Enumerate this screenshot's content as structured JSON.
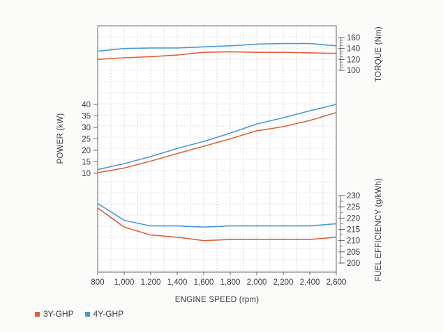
{
  "chart_data": {
    "type": "line",
    "xlabel": "ENGINE SPEED (rpm)",
    "x": [
      800,
      1000,
      1200,
      1400,
      1600,
      1800,
      2000,
      2200,
      2400,
      2600
    ],
    "x_tick_labels": [
      "800",
      "1,000",
      "1,200",
      "1,400",
      "1,600",
      "1,800",
      "2,000",
      "2,200",
      "2,400",
      "2,600"
    ],
    "xlim": [
      800,
      2600
    ],
    "grid": true,
    "legend_placement": "bottom-left",
    "colors": {
      "3Y-GHP": "#e0613b",
      "4Y-GHP": "#4a98d6",
      "grid": "#bdbdbd",
      "axis": "#5a5a5a"
    },
    "panels": [
      {
        "id": "torque",
        "ylabel": "TORQUE (Nm)",
        "axis_side": "right",
        "ylim": [
          100,
          160
        ],
        "yticks": [
          100,
          120,
          140,
          160
        ],
        "series": [
          {
            "name": "3Y-GHP",
            "values": [
              120,
              123,
              125,
              128,
              133,
              134,
              133,
              133,
              132,
              131
            ]
          },
          {
            "name": "4Y-GHP",
            "values": [
              135,
              140,
              141,
              141,
              143,
              145,
              148,
              149,
              149,
              145
            ]
          }
        ]
      },
      {
        "id": "power",
        "ylabel": "POWER (kW)",
        "axis_side": "left",
        "ylim": [
          10,
          40
        ],
        "yticks": [
          10,
          15,
          20,
          25,
          30,
          35,
          40
        ],
        "series": [
          {
            "name": "3Y-GHP",
            "values": [
              10.3,
              12.3,
              15.3,
              18.6,
              21.8,
              25,
              28.5,
              30.3,
              33,
              36.5
            ]
          },
          {
            "name": "4Y-GHP",
            "values": [
              11.6,
              14.2,
              17.3,
              20.8,
              23.9,
              27.5,
              31.5,
              34.2,
              37.2,
              40
            ]
          }
        ]
      },
      {
        "id": "fuel",
        "ylabel": "FUEL EFFICIENCY (g/kWh)",
        "axis_side": "right",
        "ylim": [
          200,
          230
        ],
        "yticks": [
          200,
          205,
          210,
          215,
          220,
          225,
          230
        ],
        "series": [
          {
            "name": "3Y-GHP",
            "values": [
              224.5,
              216,
              212.5,
              211.5,
              210,
              210.5,
              210.5,
              210.5,
              210.5,
              211.5
            ]
          },
          {
            "name": "4Y-GHP",
            "values": [
              226.5,
              219,
              216.5,
              216.5,
              216,
              216.5,
              216.5,
              216.5,
              216.5,
              217.5
            ]
          }
        ]
      }
    ]
  }
}
